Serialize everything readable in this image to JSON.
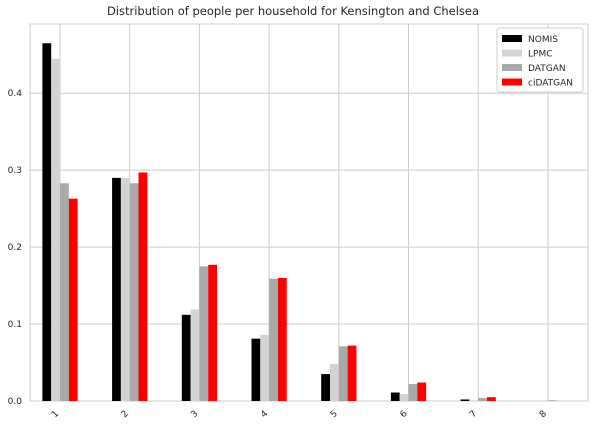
{
  "chart_data": {
    "type": "bar",
    "title": "Distribution of people per household for Kensington and Chelsea",
    "xlabel": "",
    "ylabel": "",
    "categories": [
      "1",
      "2",
      "3",
      "4",
      "5",
      "6",
      "7",
      "8"
    ],
    "ylim": [
      0,
      0.49
    ],
    "yticks": [
      0.0,
      0.1,
      0.2,
      0.3,
      0.4
    ],
    "ytick_labels": [
      "0.0",
      "0.1",
      "0.2",
      "0.3",
      "0.4"
    ],
    "grid": true,
    "legend_position": "top-right",
    "series": [
      {
        "name": "NOMIS",
        "color": "#000000",
        "values": [
          0.465,
          0.29,
          0.112,
          0.081,
          0.035,
          0.011,
          0.002,
          0.0
        ]
      },
      {
        "name": "LPMC",
        "color": "#d3d3d3",
        "values": [
          0.445,
          0.29,
          0.119,
          0.086,
          0.048,
          0.009,
          0.001,
          0.0
        ]
      },
      {
        "name": "DATGAN",
        "color": "#a9a9a9",
        "values": [
          0.283,
          0.283,
          0.175,
          0.159,
          0.071,
          0.022,
          0.004,
          0.001
        ]
      },
      {
        "name": "ciDATGAN",
        "color": "#ff0000",
        "values": [
          0.263,
          0.297,
          0.177,
          0.16,
          0.072,
          0.024,
          0.005,
          0.0
        ]
      }
    ]
  }
}
